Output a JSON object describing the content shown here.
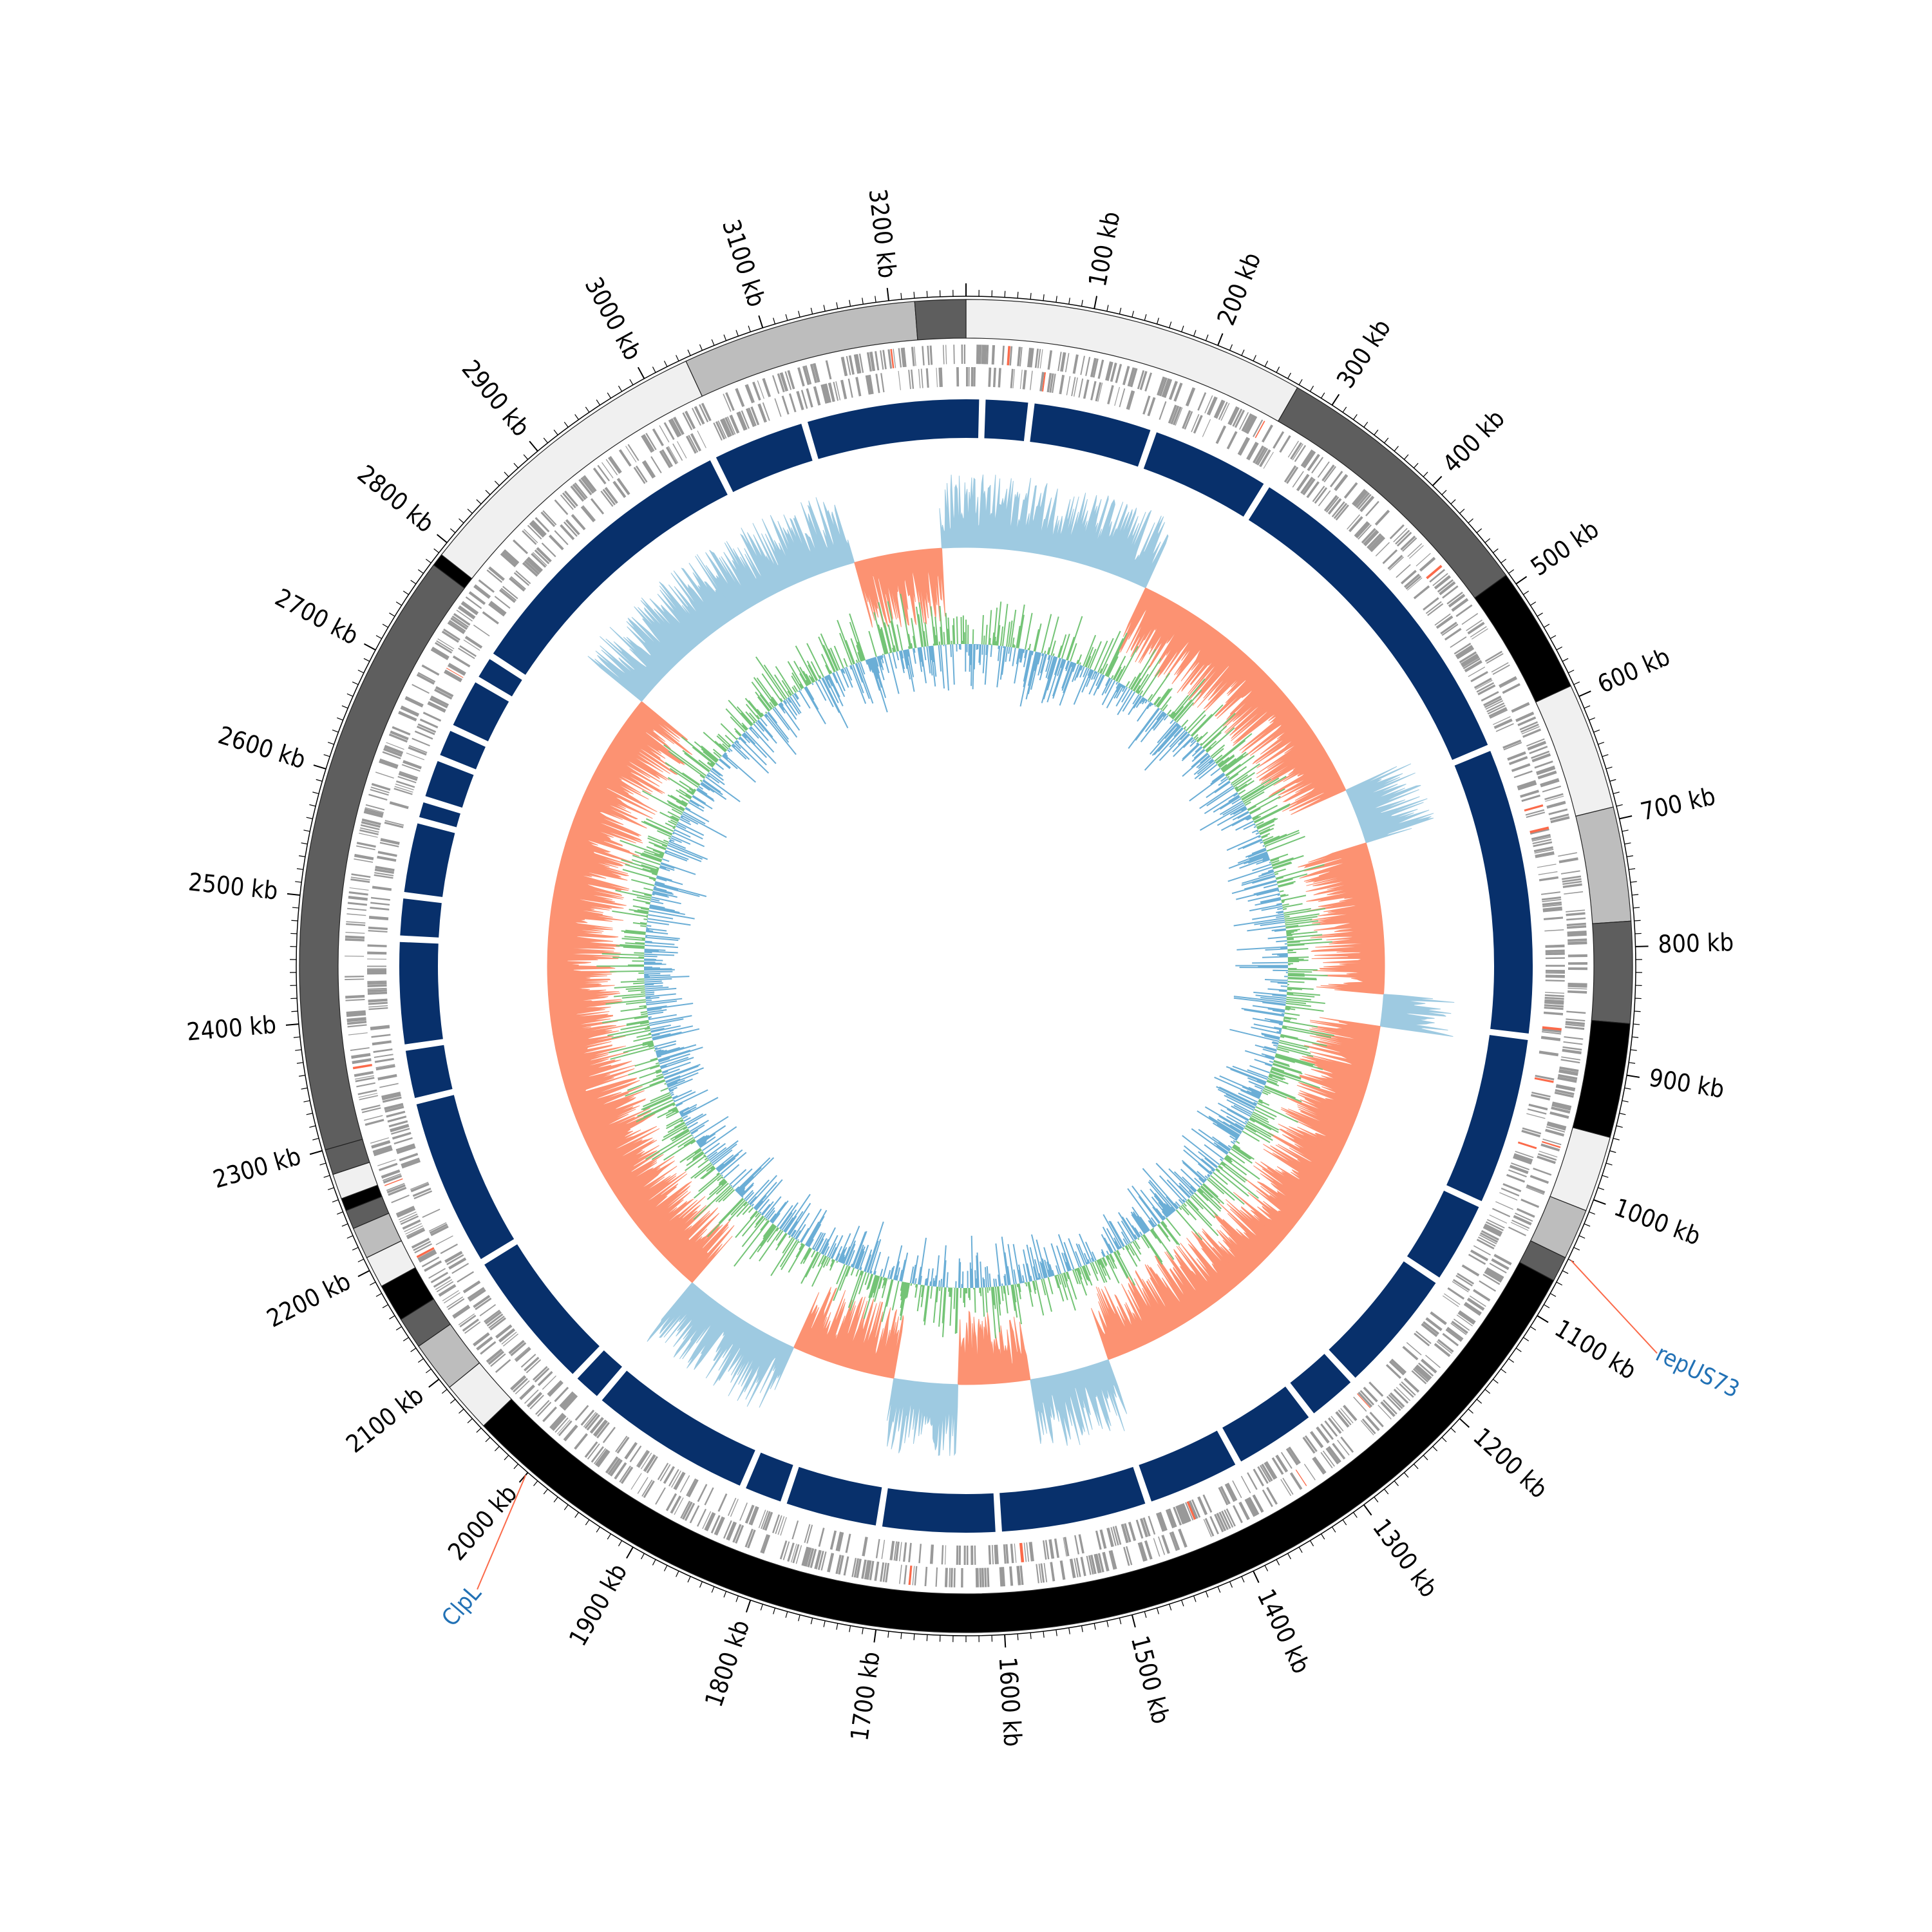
{
  "genome": {
    "total_kb": 3260,
    "tick_labels": [
      "100 kb",
      "200 kb",
      "300 kb",
      "400 kb",
      "500 kb",
      "600 kb",
      "700 kb",
      "800 kb",
      "900 kb",
      "1000 kb",
      "1100 kb",
      "1200 kb",
      "1300 kb",
      "1400 kb",
      "1500 kb",
      "1600 kb",
      "1700 kb",
      "1800 kb",
      "1900 kb",
      "2000 kb",
      "2100 kb",
      "2200 kb",
      "2300 kb",
      "2400 kb",
      "2500 kb",
      "2600 kb",
      "2700 kb",
      "2800 kb",
      "2900 kb",
      "3000 kb",
      "3100 kb",
      "3200 kb"
    ],
    "tick_values_kb": [
      100,
      200,
      300,
      400,
      500,
      600,
      700,
      800,
      900,
      1000,
      1100,
      1200,
      1300,
      1400,
      1500,
      1600,
      1700,
      1800,
      1900,
      2000,
      2100,
      2200,
      2300,
      2400,
      2500,
      2600,
      2700,
      2800,
      2900,
      3000,
      3100,
      3200
    ]
  },
  "contig_ring": {
    "segments": [
      {
        "start": 0,
        "end": 270,
        "color": "#f0f0f0"
      },
      {
        "start": 270,
        "end": 490,
        "color": "#5e5e5e"
      },
      {
        "start": 490,
        "end": 590,
        "color": "#000000"
      },
      {
        "start": 590,
        "end": 690,
        "color": "#f0f0f0"
      },
      {
        "start": 690,
        "end": 780,
        "color": "#bdbdbd"
      },
      {
        "start": 780,
        "end": 860,
        "color": "#5e5e5e"
      },
      {
        "start": 860,
        "end": 950,
        "color": "#000000"
      },
      {
        "start": 950,
        "end": 1010,
        "color": "#f0f0f0"
      },
      {
        "start": 1010,
        "end": 1050,
        "color": "#bdbdbd"
      },
      {
        "start": 1050,
        "end": 1070,
        "color": "#5e5e5e"
      },
      {
        "start": 1070,
        "end": 2050,
        "color": "#000000"
      },
      {
        "start": 2050,
        "end": 2090,
        "color": "#f0f0f0"
      },
      {
        "start": 2090,
        "end": 2130,
        "color": "#bdbdbd"
      },
      {
        "start": 2130,
        "end": 2155,
        "color": "#5e5e5e"
      },
      {
        "start": 2155,
        "end": 2185,
        "color": "#000000"
      },
      {
        "start": 2185,
        "end": 2210,
        "color": "#f0f0f0"
      },
      {
        "start": 2210,
        "end": 2235,
        "color": "#bdbdbd"
      },
      {
        "start": 2235,
        "end": 2250,
        "color": "#5e5e5e"
      },
      {
        "start": 2250,
        "end": 2260,
        "color": "#000000"
      },
      {
        "start": 2260,
        "end": 2280,
        "color": "#f0f0f0"
      },
      {
        "start": 2280,
        "end": 2300,
        "color": "#5e5e5e"
      },
      {
        "start": 2300,
        "end": 2780,
        "color": "#5e5e5e"
      },
      {
        "start": 2780,
        "end": 2790,
        "color": "#000000"
      },
      {
        "start": 2790,
        "end": 3035,
        "color": "#f0f0f0"
      },
      {
        "start": 3035,
        "end": 3220,
        "color": "#bdbdbd"
      },
      {
        "start": 3220,
        "end": 3260,
        "color": "#5e5e5e"
      }
    ]
  },
  "blast_ring": {
    "color": "#08306b",
    "gaps_kb": [
      15,
      60,
      175,
      290,
      610,
      880,
      1040,
      1120,
      1240,
      1290,
      1370,
      1460,
      1600,
      1710,
      1800,
      1840,
      1995,
      2025,
      2160,
      2320,
      2370,
      2470,
      2510,
      2580,
      2600,
      2640,
      2670,
      2720,
      2745,
      3020,
      3110
    ]
  },
  "gc_content": {
    "above_color": "#9ecae1",
    "below_color": "#fc9272"
  },
  "gc_skew": {
    "positive_color": "#74c476",
    "negative_color": "#6baed6"
  },
  "annotations": [
    {
      "label": "repUS73",
      "position_kb": 1050,
      "color": "#2171b5",
      "line_color": "#fb6a4a"
    },
    {
      "label": "ClpL",
      "position_kb": 2000,
      "color": "#2171b5",
      "line_color": "#fb6a4a"
    }
  ]
}
